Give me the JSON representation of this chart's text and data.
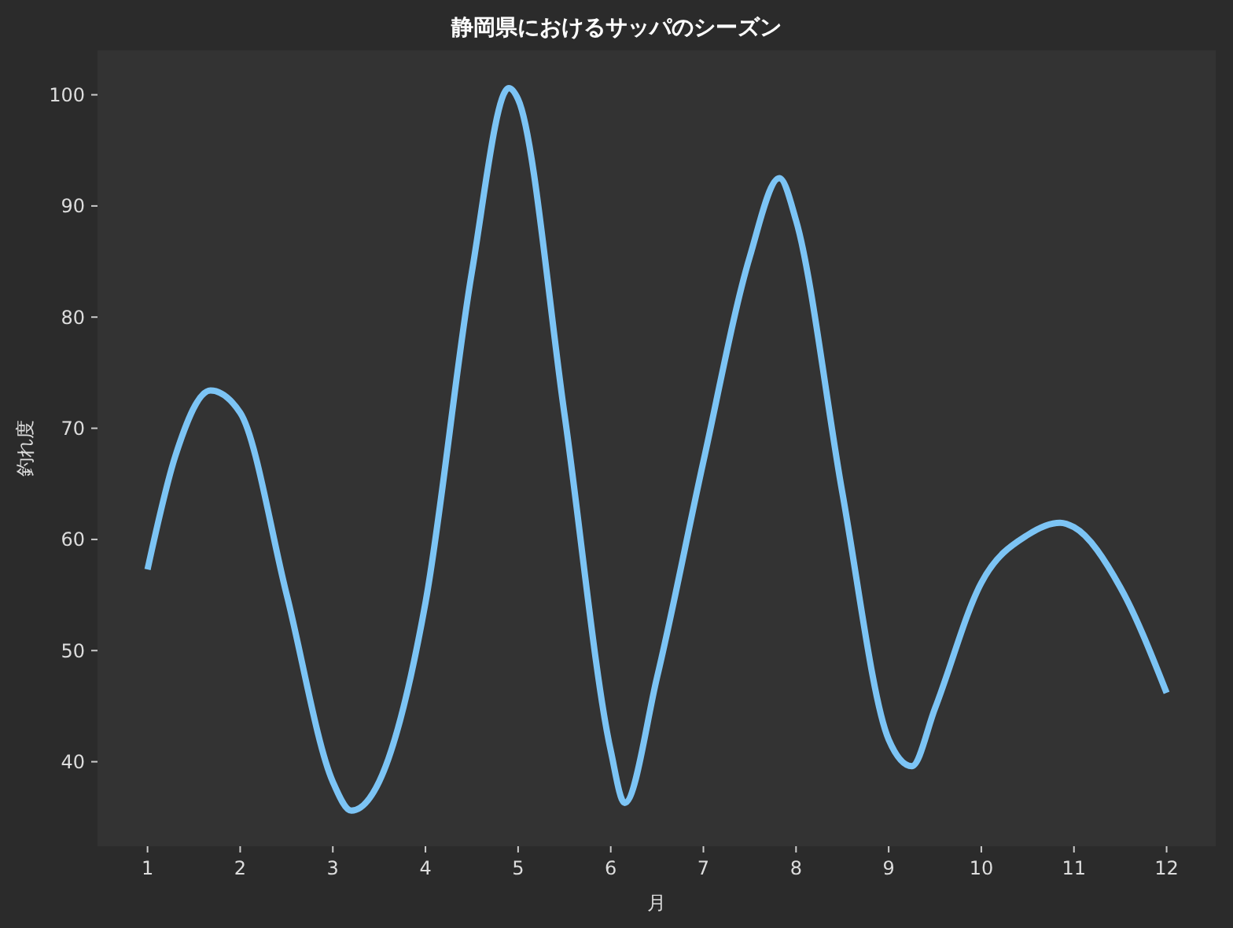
{
  "chart_data": {
    "type": "line",
    "title": "静岡県におけるサッパのシーズン",
    "xlabel": "月",
    "ylabel": "釣れ度",
    "x": [
      1,
      1.3,
      1.68,
      2,
      2.5,
      3,
      3.2,
      3.5,
      4,
      4.5,
      4.9,
      5,
      5.5,
      6,
      6.15,
      6.5,
      7,
      7.5,
      7.82,
      8,
      8.5,
      9,
      9.25,
      9.5,
      10,
      10.5,
      10.85,
      11,
      11.5,
      12
    ],
    "series": [
      {
        "color": "#7cc4f5",
        "values": [
          57.3,
          67.5,
          73.4,
          71.4,
          55.1,
          38.2,
          35.6,
          38.2,
          54.3,
          84,
          100.6,
          99.6,
          71.3,
          41,
          36.3,
          47.6,
          67,
          85.4,
          92.5,
          88.7,
          64.2,
          42,
          39.6,
          44.8,
          56.1,
          60.4,
          61.5,
          61.1,
          55.7,
          46.2
        ]
      }
    ],
    "xlim": [
      0.46,
      12.53
    ],
    "xticks": [
      1,
      2,
      3,
      4,
      5,
      6,
      7,
      8,
      9,
      10,
      11,
      12
    ],
    "ylim": [
      32.4,
      104
    ],
    "yticks": [
      40,
      50,
      60,
      70,
      80,
      90,
      100
    ],
    "grid": false,
    "marker": "none",
    "line_style": "solid"
  }
}
